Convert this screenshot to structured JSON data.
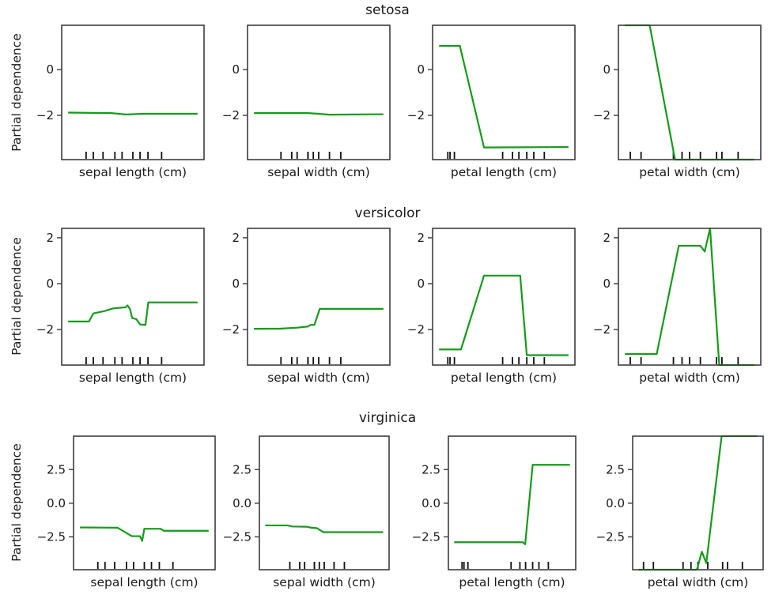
{
  "figure": {
    "background": "#ffffff",
    "line_color": "#159b1a",
    "spine_color": "#3c3c3c",
    "rug_color": "#111111",
    "text_color": "#1a1a1a"
  },
  "ylabel": "Partial dependence",
  "chart_data": {
    "type": "line",
    "legend": "none",
    "grid": "off",
    "rows": [
      {
        "target": "setosa",
        "ylim": [
          -3.93,
          1.93
        ],
        "yticks": {
          "values": [
            0,
            -2
          ],
          "labels": [
            "0",
            "−2"
          ]
        },
        "plots": [
          {
            "feature": "sepal length (cm)",
            "xlim": [
              4.12,
              8.08
            ],
            "deciles": [
              4.8,
              5.0,
              5.27,
              5.6,
              5.8,
              6.1,
              6.3,
              6.52,
              6.9
            ],
            "line": [
              [
                4.3,
                -1.88
              ],
              [
                5.5,
                -1.9
              ],
              [
                5.9,
                -1.96
              ],
              [
                6.4,
                -1.93
              ],
              [
                7.9,
                -1.93
              ]
            ]
          },
          {
            "feature": "sepal width (cm)",
            "xlim": [
              1.88,
              4.52
            ],
            "deciles": [
              2.5,
              2.7,
              2.8,
              3.0,
              3.0,
              3.1,
              3.2,
              3.4,
              3.61
            ],
            "line": [
              [
                2.0,
                -1.9
              ],
              [
                3.0,
                -1.9
              ],
              [
                3.2,
                -1.93
              ],
              [
                3.4,
                -1.97
              ],
              [
                4.4,
                -1.95
              ]
            ]
          },
          {
            "feature": "petal length (cm)",
            "xlim": [
              0.705,
              7.195
            ],
            "deciles": [
              1.4,
              1.5,
              1.7,
              3.9,
              4.35,
              4.64,
              5.0,
              5.32,
              5.8
            ],
            "line": [
              [
                1.0,
                1.03
              ],
              [
                1.95,
                1.03
              ],
              [
                3.05,
                -3.4
              ],
              [
                6.9,
                -3.38
              ]
            ]
          },
          {
            "feature": "petal width (cm)",
            "xlim": [
              -0.02,
              2.62
            ],
            "deciles": [
              0.2,
              0.4,
              1.0,
              1.16,
              1.3,
              1.5,
              1.8,
              1.9,
              2.2
            ],
            "line": [
              [
                0.1,
                1.93
              ],
              [
                0.56,
                1.93
              ],
              [
                1.03,
                -3.93
              ],
              [
                2.5,
                -3.93
              ]
            ]
          }
        ]
      },
      {
        "target": "versicolor",
        "ylim": [
          -3.55,
          2.41
        ],
        "yticks": {
          "values": [
            2,
            0,
            -2
          ],
          "labels": [
            "2",
            "0",
            "−2"
          ]
        },
        "plots": [
          {
            "feature": "sepal length (cm)",
            "xlim": [
              4.12,
              8.08
            ],
            "deciles": [
              4.8,
              5.0,
              5.27,
              5.6,
              5.8,
              6.1,
              6.3,
              6.52,
              6.9
            ],
            "line": [
              [
                4.3,
                -1.65
              ],
              [
                4.88,
                -1.65
              ],
              [
                5.0,
                -1.3
              ],
              [
                5.3,
                -1.2
              ],
              [
                5.55,
                -1.08
              ],
              [
                5.9,
                -1.03
              ],
              [
                5.95,
                -0.95
              ],
              [
                6.02,
                -1.1
              ],
              [
                6.08,
                -1.5
              ],
              [
                6.2,
                -1.55
              ],
              [
                6.3,
                -1.78
              ],
              [
                6.45,
                -1.8
              ],
              [
                6.53,
                -0.82
              ],
              [
                7.9,
                -0.82
              ]
            ]
          },
          {
            "feature": "sepal width (cm)",
            "xlim": [
              1.88,
              4.52
            ],
            "deciles": [
              2.5,
              2.7,
              2.8,
              3.0,
              3.0,
              3.1,
              3.2,
              3.4,
              3.61
            ],
            "line": [
              [
                2.0,
                -1.97
              ],
              [
                2.5,
                -1.96
              ],
              [
                2.8,
                -1.92
              ],
              [
                3.0,
                -1.87
              ],
              [
                3.05,
                -1.8
              ],
              [
                3.12,
                -1.8
              ],
              [
                3.22,
                -1.1
              ],
              [
                4.4,
                -1.1
              ]
            ]
          },
          {
            "feature": "petal length (cm)",
            "xlim": [
              0.705,
              7.195
            ],
            "deciles": [
              1.4,
              1.5,
              1.7,
              3.9,
              4.35,
              4.64,
              5.0,
              5.32,
              5.8
            ],
            "line": [
              [
                1.0,
                -2.87
              ],
              [
                2.0,
                -2.87
              ],
              [
                3.05,
                0.35
              ],
              [
                4.7,
                0.35
              ],
              [
                5.0,
                -3.12
              ],
              [
                6.9,
                -3.12
              ]
            ]
          },
          {
            "feature": "petal width (cm)",
            "xlim": [
              -0.02,
              2.62
            ],
            "deciles": [
              0.2,
              0.4,
              1.0,
              1.16,
              1.3,
              1.5,
              1.8,
              1.9,
              2.2
            ],
            "line": [
              [
                0.1,
                -3.07
              ],
              [
                0.69,
                -3.07
              ],
              [
                1.1,
                1.65
              ],
              [
                1.5,
                1.65
              ],
              [
                1.58,
                1.4
              ],
              [
                1.68,
                2.41
              ],
              [
                1.85,
                -3.55
              ],
              [
                2.5,
                -3.55
              ]
            ]
          }
        ]
      },
      {
        "target": "virginica",
        "ylim": [
          -4.94,
          4.98
        ],
        "yticks": {
          "values": [
            2.5,
            0.0,
            -2.5
          ],
          "labels": [
            "2.5",
            "0.0",
            "−2.5"
          ]
        },
        "plots": [
          {
            "feature": "sepal length (cm)",
            "xlim": [
              4.12,
              8.08
            ],
            "deciles": [
              4.8,
              5.0,
              5.27,
              5.6,
              5.8,
              6.1,
              6.3,
              6.52,
              6.9
            ],
            "line": [
              [
                4.3,
                -1.8
              ],
              [
                5.35,
                -1.82
              ],
              [
                5.75,
                -2.45
              ],
              [
                5.98,
                -2.45
              ],
              [
                6.04,
                -2.8
              ],
              [
                6.1,
                -1.9
              ],
              [
                6.55,
                -1.9
              ],
              [
                6.65,
                -2.05
              ],
              [
                7.9,
                -2.05
              ]
            ]
          },
          {
            "feature": "sepal width (cm)",
            "xlim": [
              1.88,
              4.52
            ],
            "deciles": [
              2.5,
              2.7,
              2.8,
              3.0,
              3.0,
              3.1,
              3.2,
              3.4,
              3.61
            ],
            "line": [
              [
                2.0,
                -1.65
              ],
              [
                2.45,
                -1.65
              ],
              [
                2.55,
                -1.73
              ],
              [
                2.85,
                -1.75
              ],
              [
                2.95,
                -1.83
              ],
              [
                3.05,
                -1.85
              ],
              [
                3.18,
                -2.15
              ],
              [
                4.4,
                -2.15
              ]
            ]
          },
          {
            "feature": "petal length (cm)",
            "xlim": [
              0.705,
              7.195
            ],
            "deciles": [
              1.4,
              1.5,
              1.7,
              3.9,
              4.35,
              4.64,
              5.0,
              5.32,
              5.8
            ],
            "line": [
              [
                1.0,
                -2.9
              ],
              [
                4.5,
                -2.9
              ],
              [
                4.62,
                -3.05
              ],
              [
                5.0,
                2.85
              ],
              [
                6.9,
                2.85
              ]
            ]
          },
          {
            "feature": "petal width (cm)",
            "xlim": [
              -0.02,
              2.62
            ],
            "deciles": [
              0.2,
              0.4,
              1.0,
              1.16,
              1.3,
              1.5,
              1.8,
              1.9,
              2.2
            ],
            "line": [
              [
                0.1,
                -4.94
              ],
              [
                1.28,
                -4.94
              ],
              [
                1.38,
                -3.6
              ],
              [
                1.47,
                -4.45
              ],
              [
                1.78,
                4.98
              ],
              [
                2.5,
                4.98
              ]
            ]
          }
        ]
      }
    ]
  }
}
